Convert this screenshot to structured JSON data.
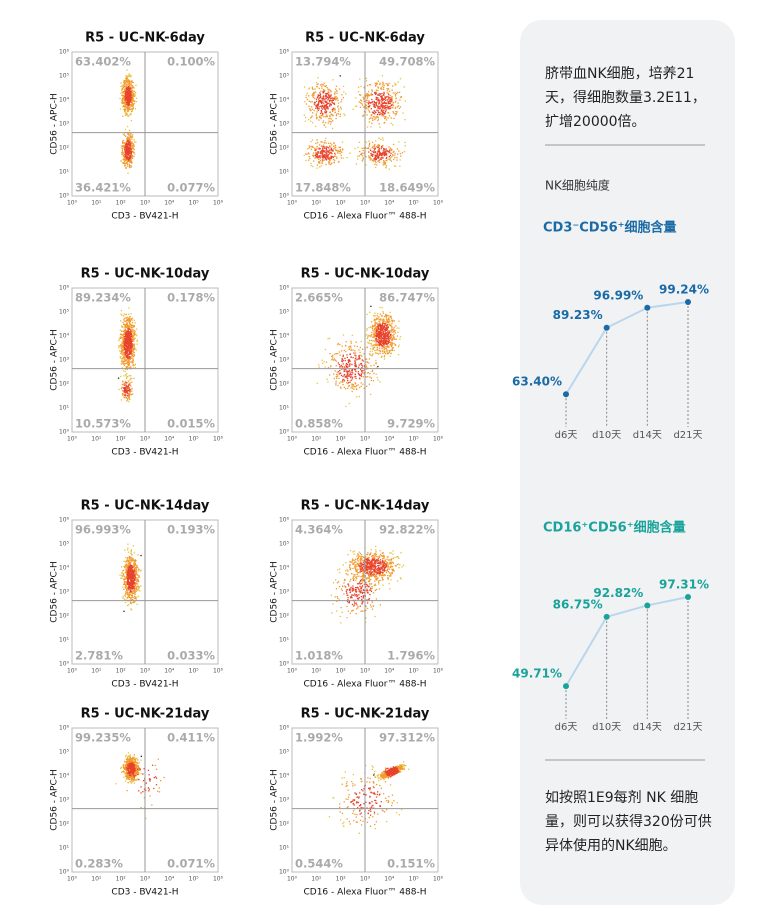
{
  "plots": [
    {
      "title": "R5 - UC-NK-6day",
      "x_label": "CD3 - BV421-H",
      "y_label": "CD56 - APC-H",
      "quadrants": [
        "63.402%",
        "0.100%",
        "36.421%",
        "0.077%"
      ]
    },
    {
      "title": "R5 - UC-NK-6day",
      "x_label": "CD16 - Alexa Fluor™ 488-H",
      "y_label": "CD56 - APC-H",
      "quadrants": [
        "13.794%",
        "49.708%",
        "17.848%",
        "18.649%"
      ]
    },
    {
      "title": "R5 - UC-NK-10day",
      "x_label": "CD3 - BV421-H",
      "y_label": "CD56 - APC-H",
      "quadrants": [
        "89.234%",
        "0.178%",
        "10.573%",
        "0.015%"
      ]
    },
    {
      "title": "R5 - UC-NK-10day",
      "x_label": "CD16 - Alexa Fluor™ 488-H",
      "y_label": "CD56 - APC-H",
      "quadrants": [
        "2.665%",
        "86.747%",
        "0.858%",
        "9.729%"
      ]
    },
    {
      "title": "R5 - UC-NK-14day",
      "x_label": "CD3 - BV421-H",
      "y_label": "CD56 - APC-H",
      "quadrants": [
        "96.993%",
        "0.193%",
        "2.781%",
        "0.033%"
      ]
    },
    {
      "title": "R5 - UC-NK-14day",
      "x_label": "CD16 - Alexa Fluor™ 488-H",
      "y_label": "CD56 - APC-H",
      "quadrants": [
        "4.364%",
        "92.822%",
        "1.018%",
        "1.796%"
      ]
    },
    {
      "title": "R5 - UC-NK-21day",
      "x_label": "CD3 - BV421-H",
      "y_label": "CD56 - APC-H",
      "quadrants": [
        "99.235%",
        "0.411%",
        "0.283%",
        "0.071%"
      ]
    },
    {
      "title": "R5 - UC-NK-21day",
      "x_label": "CD16 - Alexa Fluor™ 488-H",
      "y_label": "CD56 - APC-H",
      "quadrants": [
        "1.992%",
        "97.312%",
        "0.544%",
        "0.151%"
      ]
    }
  ],
  "log_ticks": [
    "10⁰",
    "10¹",
    "10²",
    "10³",
    "10⁴",
    "10⁵",
    "10⁶"
  ],
  "panel": {
    "intro": "脐带血NK细胞，培养21天，得细胞数量3.2E11，扩增20000倍。",
    "purity": "NK细胞纯度",
    "outro": "如按照1E9每剂 NK 细胞量，则可以获得320份可供异体使用的NK细胞。"
  },
  "chart_data": [
    {
      "type": "line",
      "title": "CD3⁻CD56⁺细胞含量",
      "categories": [
        "d6天",
        "d10天",
        "d14天",
        "d21天"
      ],
      "values": [
        63.4,
        89.23,
        96.99,
        99.24
      ],
      "value_labels": [
        "63.40%",
        "89.23%",
        "96.99%",
        "99.24%"
      ],
      "color": "#1a6aa6",
      "ylim": [
        60,
        100
      ]
    },
    {
      "type": "line",
      "title": "CD16⁺CD56⁺细胞含量",
      "categories": [
        "d6天",
        "d10天",
        "d14天",
        "d21天"
      ],
      "values": [
        49.71,
        86.75,
        92.82,
        97.31
      ],
      "value_labels": [
        "49.71%",
        "86.75%",
        "92.82%",
        "97.31%"
      ],
      "color": "#1aa39a",
      "ylim": [
        45,
        100
      ]
    }
  ]
}
